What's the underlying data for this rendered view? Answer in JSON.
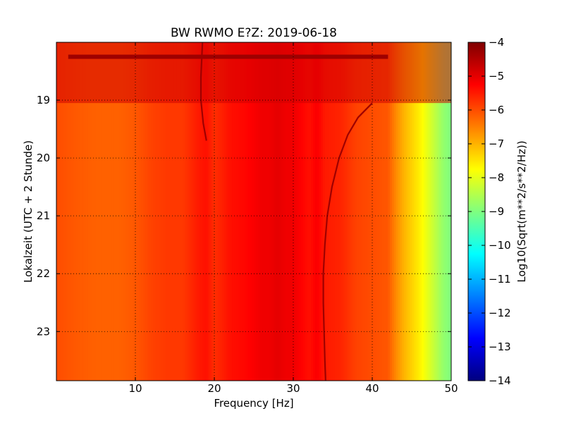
{
  "chart_data": {
    "type": "heatmap",
    "title": "BW RWMO E?Z: 2019-06-18",
    "xlabel": "Frequency [Hz]",
    "ylabel": "Lokalzeit (UTC + 2 Stunde)",
    "xlim": [
      0,
      50
    ],
    "ylim": [
      18.0,
      23.85
    ],
    "y_inverted": true,
    "x_ticks": [
      10,
      20,
      30,
      40,
      50
    ],
    "y_ticks": [
      19,
      20,
      21,
      22,
      23
    ],
    "grid": true,
    "grid_style": "dotted",
    "colormap": "jet",
    "colorbar": {
      "label": "Log10(Sqrt(m**2/s**2/Hz))",
      "range": [
        -14,
        -4
      ],
      "ticks": [
        -4,
        -5,
        -6,
        -7,
        -8,
        -9,
        -10,
        -11,
        -12,
        -13,
        -14
      ]
    },
    "spectrum_profile": {
      "frequency_hz": [
        0,
        2,
        5,
        8,
        10,
        12,
        14,
        16,
        18,
        19,
        20,
        22,
        24,
        25,
        26,
        27,
        28,
        29,
        30,
        32,
        33,
        34,
        36,
        38,
        40,
        42,
        43,
        44,
        45,
        46,
        47,
        48,
        49,
        50
      ],
      "log10_amplitude": [
        -6.0,
        -6.1,
        -6.2,
        -6.2,
        -6.1,
        -5.9,
        -5.8,
        -5.8,
        -5.5,
        -5.4,
        -5.7,
        -5.4,
        -5.3,
        -5.2,
        -5.1,
        -5.1,
        -5.0,
        -5.1,
        -5.1,
        -5.4,
        -5.2,
        -5.5,
        -5.6,
        -5.9,
        -6.0,
        -6.1,
        -6.6,
        -7.0,
        -7.3,
        -7.6,
        -8.0,
        -8.4,
        -8.8,
        -9.0
      ]
    },
    "noisy_period": {
      "time_range": [
        18.0,
        19.05
      ],
      "max_frequency_hz": 50,
      "log10_amplitude": -4.8,
      "strongest_band": {
        "time": 18.25,
        "frequency_range": [
          1.5,
          42
        ],
        "log10_amplitude": -4.3
      }
    },
    "drifting_lines": [
      {
        "time": [
          18.0,
          18.6,
          19.0,
          19.4,
          19.7
        ],
        "frequency_hz": [
          18.5,
          18.3,
          18.3,
          18.6,
          19.0
        ]
      },
      {
        "time": [
          19.05,
          19.3,
          19.6,
          20.0,
          20.5,
          21.0,
          21.5,
          22.0,
          22.5,
          23.0,
          23.5,
          23.85
        ],
        "frequency_hz": [
          40.0,
          38.2,
          36.9,
          35.8,
          34.9,
          34.3,
          34.0,
          33.8,
          33.8,
          33.9,
          34.0,
          34.1
        ]
      }
    ]
  }
}
